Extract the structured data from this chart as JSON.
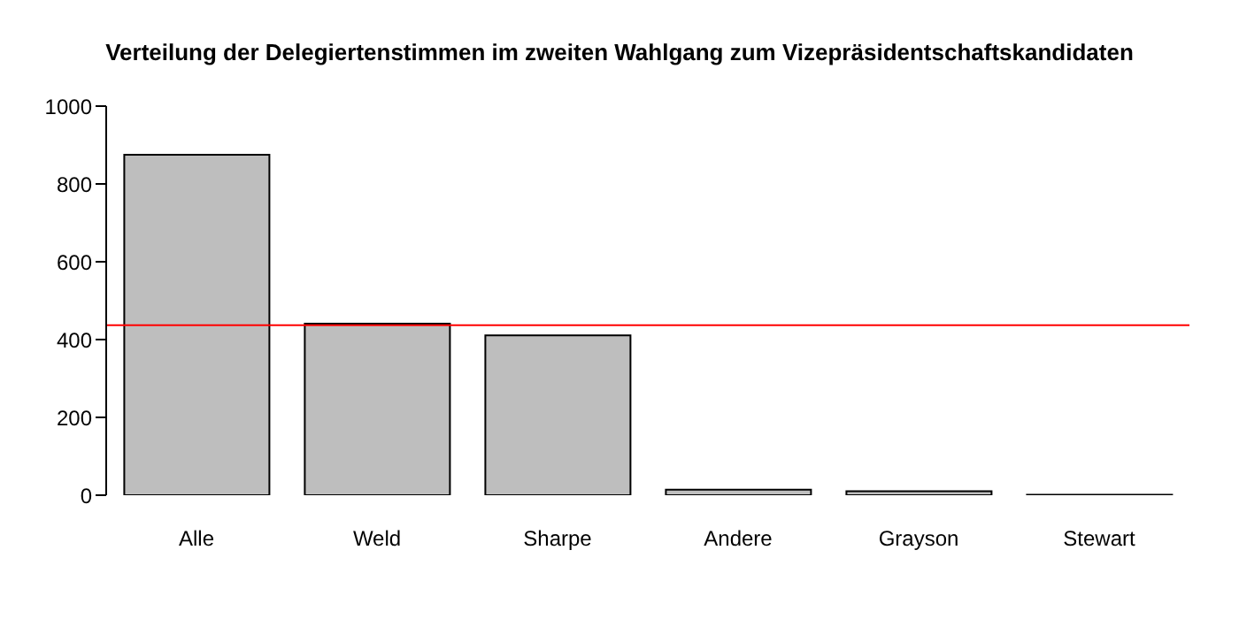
{
  "chart_data": {
    "type": "bar",
    "title": "Verteilung der Delegiertenstimmen im zweiten Wahlgang zum Vizepräsidentschaftskandidaten",
    "categories": [
      "Alle",
      "Weld",
      "Sharpe",
      "Andere",
      "Grayson",
      "Stewart"
    ],
    "values": [
      875,
      441,
      411,
      14,
      10,
      1
    ],
    "color": "#bebebe",
    "ylim": [
      0,
      1000
    ],
    "yticks": [
      0,
      200,
      400,
      600,
      800,
      1000
    ],
    "grid": false,
    "legend": false,
    "ref_lines": [
      {
        "axis": "y",
        "value": 437,
        "color": "#ff0000"
      }
    ]
  }
}
